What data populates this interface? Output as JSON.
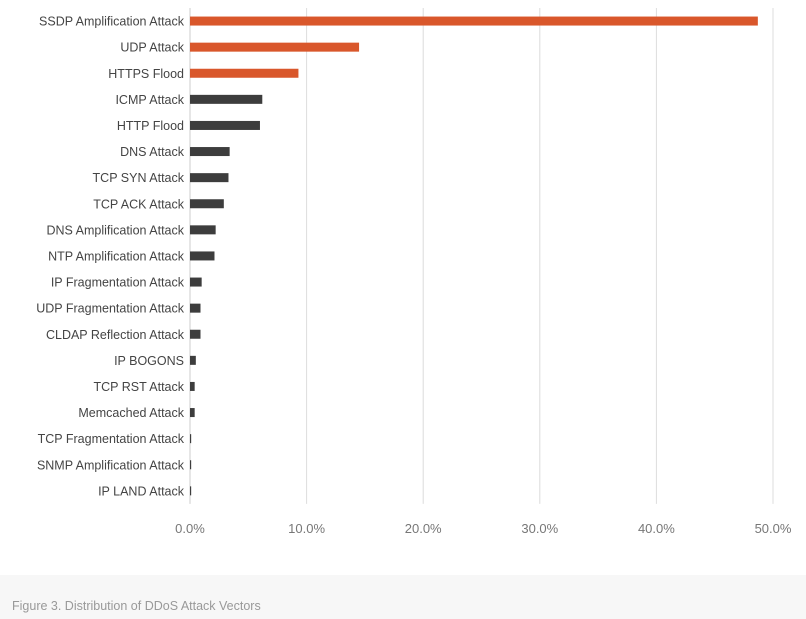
{
  "chart_data": {
    "type": "bar",
    "orientation": "horizontal",
    "categories": [
      "SSDP Amplification Attack",
      "UDP Attack",
      "HTTPS Flood",
      "ICMP Attack",
      "HTTP Flood",
      "DNS Attack",
      "TCP SYN Attack",
      "TCP ACK Attack",
      "DNS Amplification Attack",
      "NTP Amplification Attack",
      "IP Fragmentation Attack",
      "UDP Fragmentation Attack",
      "CLDAP Reflection Attack",
      "IP BOGONS",
      "TCP RST Attack",
      "Memcached Attack",
      "TCP Fragmentation Attack",
      "SNMP Amplification Attack",
      "IP LAND Attack"
    ],
    "values": [
      48.7,
      14.5,
      9.3,
      6.2,
      6.0,
      3.4,
      3.3,
      2.9,
      2.2,
      2.1,
      1.0,
      0.9,
      0.9,
      0.5,
      0.4,
      0.4,
      0.1,
      0.1,
      0.1
    ],
    "value_unit": "%",
    "highlighted": [
      true,
      true,
      true,
      false,
      false,
      false,
      false,
      false,
      false,
      false,
      false,
      false,
      false,
      false,
      false,
      false,
      false,
      false,
      false
    ],
    "xlim": [
      0,
      50
    ],
    "xticks": [
      0,
      10,
      20,
      30,
      40,
      50
    ],
    "xtick_labels": [
      "0.0%",
      "10.0%",
      "20.0%",
      "30.0%",
      "40.0%",
      "50.0%"
    ],
    "grid": "vertical",
    "colors": {
      "highlight": "#d9572b",
      "default": "#3d3d3d",
      "grid": "#dcdcdc",
      "axis": "#cccccc"
    }
  },
  "caption": "Figure 3. Distribution of DDoS Attack Vectors"
}
